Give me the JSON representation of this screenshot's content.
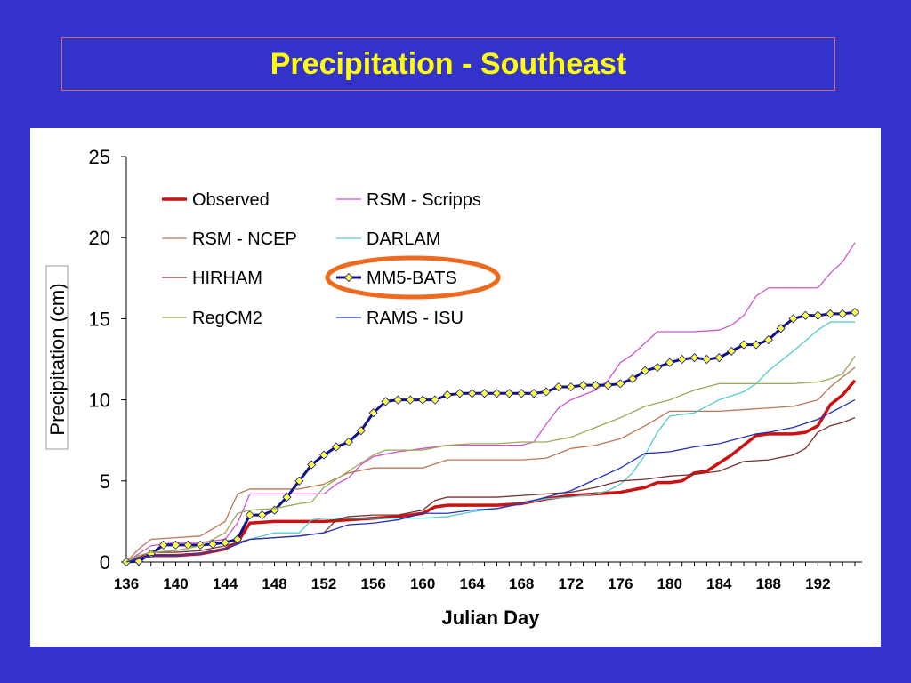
{
  "slide": {
    "title": "Precipitation - Southeast"
  },
  "colors": {
    "background": "#3333cc",
    "title": "#ffff00",
    "highlight": "#ee6a1e"
  },
  "chart_data": {
    "type": "line",
    "xlabel": "Julian Day",
    "ylabel": "Precipitation (cm)",
    "xlim": [
      136,
      195
    ],
    "ylim": [
      0,
      25
    ],
    "xticks": [
      136,
      140,
      144,
      148,
      152,
      156,
      160,
      164,
      168,
      172,
      176,
      180,
      184,
      188,
      192
    ],
    "yticks": [
      0,
      5,
      10,
      15,
      20,
      25
    ],
    "grid": false,
    "legend_position": "top-left, inside plot, two columns",
    "legend_order": [
      "Observed",
      "RSM - Scripps",
      "RSM - NCEP",
      "DARLAM",
      "HIRHAM",
      "MM5-BATS",
      "RegCM2",
      "RAMS - ISU"
    ],
    "highlighted_legend_entry": "MM5-BATS",
    "series": [
      {
        "name": "Observed",
        "color": "#cc1111",
        "width": 3.5,
        "marker": "none",
        "x": [
          136,
          138,
          140,
          142,
          144,
          145,
          146,
          148,
          150,
          152,
          154,
          156,
          158,
          160,
          161,
          162,
          164,
          166,
          168,
          170,
          172,
          174,
          176,
          178,
          179,
          180,
          181,
          182,
          183,
          184,
          185,
          186,
          187,
          188,
          189,
          190,
          191,
          192,
          193,
          194,
          195
        ],
        "y": [
          0,
          0.4,
          0.4,
          0.5,
          0.8,
          1.2,
          2.4,
          2.5,
          2.5,
          2.5,
          2.6,
          2.7,
          2.8,
          3,
          3.4,
          3.5,
          3.5,
          3.5,
          3.6,
          3.9,
          4.1,
          4.2,
          4.3,
          4.6,
          4.9,
          4.9,
          5,
          5.5,
          5.6,
          6.1,
          6.6,
          7.2,
          7.8,
          7.9,
          7.9,
          7.9,
          8,
          8.4,
          9.7,
          10.3,
          11.2
        ]
      },
      {
        "name": "RSM - Scripps",
        "color": "#cc55cc",
        "width": 1.3,
        "marker": "none",
        "x": [
          136,
          137,
          138,
          140,
          142,
          144,
          145,
          146,
          148,
          150,
          152,
          153,
          154,
          155,
          156,
          158,
          160,
          162,
          164,
          166,
          168,
          169,
          170,
          171,
          172,
          174,
          175,
          176,
          177,
          178,
          179,
          180,
          182,
          184,
          185,
          186,
          187,
          188,
          190,
          192,
          193,
          194,
          195
        ],
        "y": [
          0,
          0.5,
          1,
          1.2,
          1.2,
          1.4,
          2.4,
          4.2,
          4.2,
          4.2,
          4.2,
          4.8,
          5.2,
          6,
          6.5,
          6.8,
          7,
          7.2,
          7.2,
          7.2,
          7.2,
          7.4,
          8.5,
          9.5,
          10,
          10.6,
          11.2,
          12.3,
          12.8,
          13.5,
          14.2,
          14.2,
          14.2,
          14.3,
          14.6,
          15.2,
          16.4,
          16.9,
          16.9,
          16.9,
          17.8,
          18.5,
          19.7
        ]
      },
      {
        "name": "RSM - NCEP",
        "color": "#bb7755",
        "width": 1.3,
        "marker": "none",
        "x": [
          136,
          137,
          138,
          140,
          142,
          144,
          145,
          146,
          148,
          150,
          152,
          154,
          156,
          158,
          160,
          162,
          164,
          166,
          168,
          170,
          172,
          174,
          176,
          178,
          180,
          182,
          184,
          186,
          188,
          190,
          192,
          193,
          194,
          195
        ],
        "y": [
          0,
          0.8,
          1.4,
          1.5,
          1.6,
          2.5,
          4.2,
          4.5,
          4.5,
          4.5,
          4.8,
          5.5,
          5.8,
          5.8,
          5.8,
          6.3,
          6.3,
          6.3,
          6.3,
          6.4,
          7,
          7.2,
          7.6,
          8.4,
          9.3,
          9.3,
          9.3,
          9.4,
          9.5,
          9.6,
          10,
          10.8,
          11.4,
          12
        ]
      },
      {
        "name": "DARLAM",
        "color": "#55cccc",
        "width": 1.3,
        "marker": "none",
        "x": [
          136,
          138,
          140,
          142,
          144,
          146,
          148,
          150,
          151,
          152,
          154,
          156,
          158,
          160,
          162,
          164,
          166,
          168,
          170,
          172,
          174,
          175,
          176,
          177,
          178,
          179,
          180,
          182,
          184,
          186,
          187,
          188,
          190,
          192,
          193,
          194,
          195
        ],
        "y": [
          0,
          0.4,
          0.4,
          0.5,
          0.8,
          1.4,
          1.8,
          1.8,
          2.6,
          2.7,
          2.7,
          2.7,
          2.7,
          2.7,
          2.8,
          3.1,
          3.3,
          3.6,
          3.9,
          4,
          4.2,
          4.4,
          4.8,
          5.5,
          6.6,
          8,
          9,
          9.2,
          10,
          10.5,
          11,
          11.8,
          13,
          14.3,
          14.8,
          14.8,
          14.8
        ]
      },
      {
        "name": "HIRHAM",
        "color": "#773333",
        "width": 1.3,
        "marker": "none",
        "x": [
          136,
          138,
          140,
          142,
          144,
          146,
          148,
          150,
          152,
          153,
          154,
          156,
          158,
          160,
          161,
          162,
          164,
          166,
          168,
          170,
          172,
          174,
          176,
          178,
          180,
          182,
          184,
          186,
          188,
          190,
          191,
          192,
          193,
          194,
          195
        ],
        "y": [
          0,
          0.6,
          0.6,
          0.7,
          1,
          1.4,
          1.5,
          1.6,
          1.8,
          2.6,
          2.8,
          2.9,
          2.9,
          3.2,
          3.8,
          4,
          4,
          4,
          4.1,
          4.2,
          4.3,
          4.6,
          5,
          5.1,
          5.3,
          5.4,
          5.6,
          6.2,
          6.3,
          6.6,
          7,
          8,
          8.4,
          8.6,
          8.9
        ]
      },
      {
        "name": "MM5-BATS",
        "color": "#111188",
        "width": 3,
        "marker": "diamond",
        "marker_color": "#ffff44",
        "x": [
          136,
          137,
          138,
          139,
          140,
          141,
          142,
          143,
          144,
          145,
          146,
          147,
          148,
          149,
          150,
          151,
          152,
          153,
          154,
          155,
          156,
          157,
          158,
          159,
          160,
          161,
          162,
          163,
          164,
          165,
          166,
          167,
          168,
          169,
          170,
          171,
          172,
          173,
          174,
          175,
          176,
          177,
          178,
          179,
          180,
          181,
          182,
          183,
          184,
          185,
          186,
          187,
          188,
          189,
          190,
          191,
          192,
          193,
          194,
          195
        ],
        "y": [
          0,
          0.05,
          0.5,
          1.05,
          1.05,
          1.05,
          1.05,
          1.1,
          1.2,
          1.4,
          2.9,
          2.9,
          3.2,
          4,
          5,
          6,
          6.6,
          7.1,
          7.4,
          8.1,
          9.2,
          9.9,
          10,
          10,
          10,
          10,
          10.3,
          10.4,
          10.4,
          10.4,
          10.4,
          10.4,
          10.4,
          10.4,
          10.5,
          10.8,
          10.8,
          10.9,
          10.9,
          10.9,
          11,
          11.3,
          11.8,
          12,
          12.3,
          12.5,
          12.6,
          12.5,
          12.6,
          13,
          13.4,
          13.4,
          13.7,
          14.4,
          15,
          15.2,
          15.2,
          15.3,
          15.3,
          15.4
        ]
      },
      {
        "name": "RegCM2",
        "color": "#99aa55",
        "width": 1.3,
        "marker": "none",
        "x": [
          136,
          137,
          138,
          140,
          142,
          144,
          145,
          146,
          148,
          150,
          151,
          152,
          154,
          156,
          157,
          158,
          160,
          162,
          164,
          166,
          168,
          170,
          172,
          174,
          176,
          178,
          180,
          182,
          184,
          186,
          188,
          190,
          192,
          193,
          194,
          195
        ],
        "y": [
          0,
          0.4,
          0.6,
          0.7,
          1,
          1.8,
          3,
          3.2,
          3.3,
          3.6,
          3.7,
          4.6,
          5.6,
          6.6,
          6.9,
          6.9,
          6.9,
          7.2,
          7.3,
          7.3,
          7.4,
          7.4,
          7.7,
          8.3,
          8.9,
          9.6,
          10,
          10.6,
          11,
          11,
          11,
          11,
          11.1,
          11.3,
          11.6,
          12.7
        ]
      },
      {
        "name": "RAMS - ISU",
        "color": "#2233bb",
        "width": 1.3,
        "marker": "none",
        "x": [
          136,
          138,
          140,
          142,
          144,
          146,
          148,
          150,
          152,
          154,
          156,
          158,
          160,
          162,
          164,
          166,
          168,
          170,
          172,
          174,
          176,
          178,
          180,
          182,
          184,
          186,
          187,
          188,
          190,
          192,
          194,
          195
        ],
        "y": [
          0,
          0.4,
          0.4,
          0.5,
          0.8,
          1.4,
          1.5,
          1.6,
          1.8,
          2.3,
          2.4,
          2.6,
          3,
          3,
          3.2,
          3.3,
          3.6,
          4,
          4.4,
          5.1,
          5.8,
          6.7,
          6.8,
          7.1,
          7.3,
          7.7,
          7.9,
          8,
          8.3,
          8.8,
          9.6,
          10
        ]
      }
    ]
  }
}
